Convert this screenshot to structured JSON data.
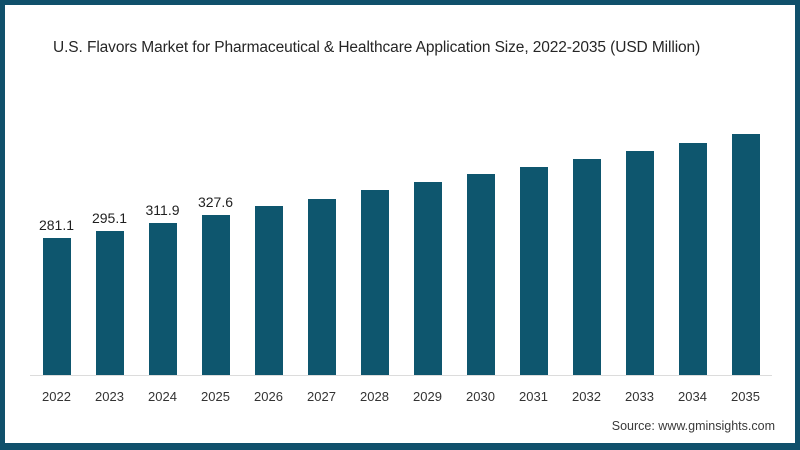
{
  "window": {
    "background": "#ffffff",
    "frame_color": "#10506B"
  },
  "header": {
    "title": "U.S. Flavors Market for Pharmaceutical & Healthcare Application Size, 2022-2035 (USD Million)"
  },
  "footer": {
    "source": "Source: www.gminsights.com"
  },
  "chart_data": {
    "type": "bar",
    "title": "U.S. Flavors Market for Pharmaceutical & Healthcare Application Size, 2022-2035 (USD Million)",
    "categories": [
      "2022",
      "2023",
      "2024",
      "2025",
      "2026",
      "2027",
      "2028",
      "2029",
      "2030",
      "2031",
      "2032",
      "2033",
      "2034",
      "2035"
    ],
    "values": [
      281.1,
      295.1,
      311.9,
      327.6,
      347,
      361,
      378,
      395,
      411,
      426,
      443,
      459,
      476,
      494
    ],
    "data_labels": [
      "281.1",
      "295.1",
      "311.9",
      "327.6",
      "",
      "",
      "",
      "",
      "",
      "",
      "",
      "",
      "",
      ""
    ],
    "xlabel": "",
    "ylabel": "",
    "ylim": [
      0,
      510
    ],
    "grid": false,
    "legend": false,
    "y_axis_shown": false,
    "bar_color": "#0E566E",
    "axis_line_color": "#dcdcdc",
    "label_color": "#1f1f1f",
    "tick_color": "#333333"
  }
}
